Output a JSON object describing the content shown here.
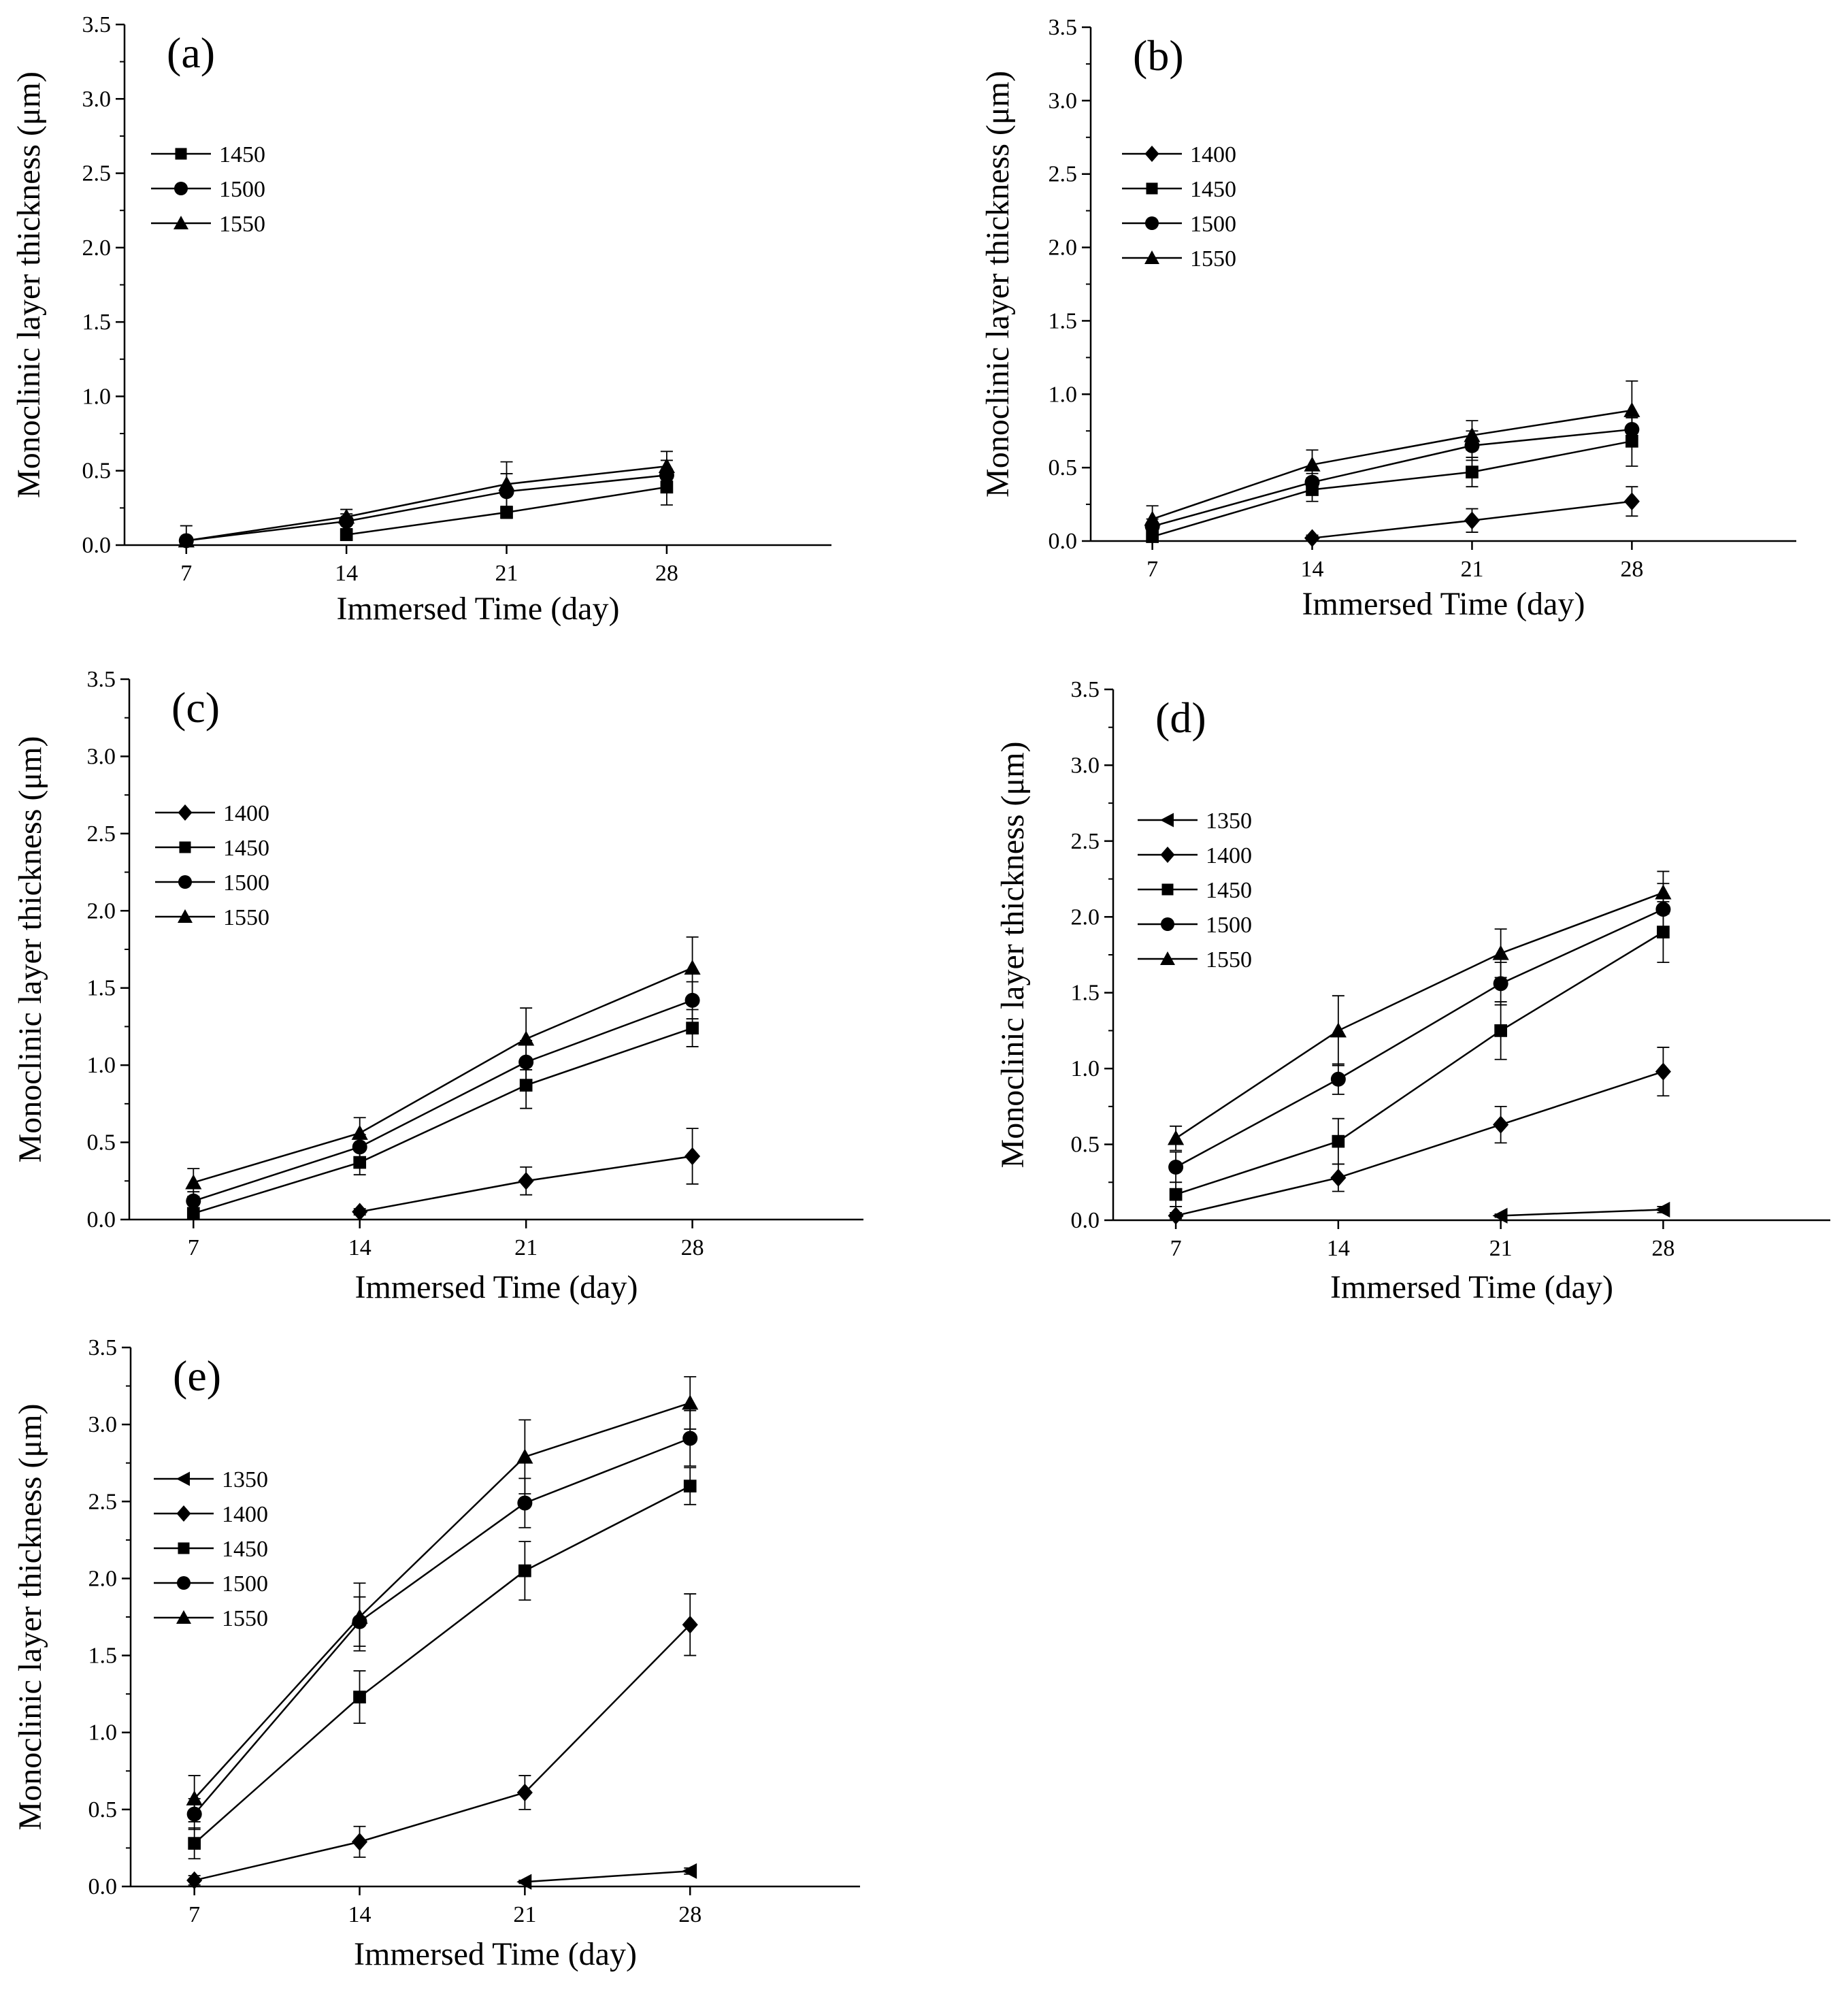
{
  "figure": {
    "xlabel": "Immersed Time (day)",
    "ylabel": "Monoclinic layer thickness (μm)"
  },
  "chart_data": [
    {
      "type": "line",
      "panel": "(a)",
      "xlabel": "Immersed Time (day)",
      "ylabel": "Monoclinic layer thickness (μm)",
      "x": [
        7,
        14,
        21,
        28
      ],
      "x_ticks": [
        "7",
        "14",
        "21",
        "28"
      ],
      "y_ticks": [
        "0.0",
        "0.5",
        "1.0",
        "1.5",
        "2.0",
        "2.5",
        "3.0",
        "3.5"
      ],
      "ylim": [
        0,
        3.5
      ],
      "series": [
        {
          "name": "1450",
          "marker": "square",
          "values": [
            null,
            0.07,
            0.22,
            0.39
          ],
          "errors": [
            null,
            0.03,
            0.04,
            0.12
          ]
        },
        {
          "name": "1500",
          "marker": "circle",
          "values": [
            0.03,
            0.16,
            0.36,
            0.47
          ],
          "errors": [
            0.02,
            0.05,
            0.12,
            0.1
          ]
        },
        {
          "name": "1550",
          "marker": "triangle-up",
          "values": [
            0.03,
            0.19,
            0.41,
            0.53
          ],
          "errors": [
            0.1,
            0.05,
            0.15,
            0.1
          ]
        }
      ]
    },
    {
      "type": "line",
      "panel": "(b)",
      "xlabel": "Immersed Time (day)",
      "ylabel": "Monoclinic layer thickness (μm)",
      "x": [
        7,
        14,
        21,
        28
      ],
      "x_ticks": [
        "7",
        "14",
        "21",
        "28"
      ],
      "y_ticks": [
        "0.0",
        "0.5",
        "1.0",
        "1.5",
        "2.0",
        "2.5",
        "3.0",
        "3.5"
      ],
      "ylim": [
        0,
        3.5
      ],
      "series": [
        {
          "name": "1400",
          "marker": "diamond",
          "values": [
            null,
            0.02,
            0.14,
            0.27
          ],
          "errors": [
            null,
            0.02,
            0.08,
            0.1
          ]
        },
        {
          "name": "1450",
          "marker": "square",
          "values": [
            0.03,
            0.35,
            0.47,
            0.68
          ],
          "errors": [
            0.05,
            0.08,
            0.1,
            0.17
          ]
        },
        {
          "name": "1500",
          "marker": "circle",
          "values": [
            0.1,
            0.4,
            0.65,
            0.76
          ],
          "errors": [
            0.05,
            0.06,
            0.1,
            0.08
          ]
        },
        {
          "name": "1550",
          "marker": "triangle-up",
          "values": [
            0.15,
            0.52,
            0.72,
            0.89
          ],
          "errors": [
            0.09,
            0.1,
            0.1,
            0.2
          ]
        }
      ]
    },
    {
      "type": "line",
      "panel": "(c)",
      "xlabel": "Immersed Time (day)",
      "ylabel": "Monoclinic layer thickness (μm)",
      "x": [
        7,
        14,
        21,
        28
      ],
      "x_ticks": [
        "7",
        "14",
        "21",
        "28"
      ],
      "y_ticks": [
        "0.0",
        "0.5",
        "1.0",
        "1.5",
        "2.0",
        "2.5",
        "3.0",
        "3.5"
      ],
      "ylim": [
        0,
        3.5
      ],
      "series": [
        {
          "name": "1400",
          "marker": "diamond",
          "values": [
            null,
            0.05,
            0.25,
            0.41
          ],
          "errors": [
            null,
            0.02,
            0.09,
            0.18
          ]
        },
        {
          "name": "1450",
          "marker": "square",
          "values": [
            0.04,
            0.37,
            0.87,
            1.24
          ],
          "errors": [
            0.03,
            0.08,
            0.15,
            0.12
          ]
        },
        {
          "name": "1500",
          "marker": "circle",
          "values": [
            0.12,
            0.47,
            1.02,
            1.42
          ],
          "errors": [
            0.06,
            0.08,
            0.14,
            0.12
          ]
        },
        {
          "name": "1550",
          "marker": "triangle-up",
          "values": [
            0.24,
            0.56,
            1.17,
            1.63
          ],
          "errors": [
            0.09,
            0.1,
            0.2,
            0.2
          ]
        }
      ]
    },
    {
      "type": "line",
      "panel": "(d)",
      "xlabel": "Immersed Time (day)",
      "ylabel": "Monoclinic layer thickness (μm)",
      "x": [
        7,
        14,
        21,
        28
      ],
      "x_ticks": [
        "7",
        "14",
        "21",
        "28"
      ],
      "y_ticks": [
        "0.0",
        "0.5",
        "1.0",
        "1.5",
        "2.0",
        "2.5",
        "3.0",
        "3.5"
      ],
      "ylim": [
        0,
        3.5
      ],
      "series": [
        {
          "name": "1350",
          "marker": "triangle-left",
          "values": [
            null,
            null,
            0.03,
            0.07
          ],
          "errors": [
            null,
            null,
            0.01,
            0.02
          ]
        },
        {
          "name": "1400",
          "marker": "diamond",
          "values": [
            0.03,
            0.28,
            0.63,
            0.98
          ],
          "errors": [
            0.02,
            0.09,
            0.12,
            0.16
          ]
        },
        {
          "name": "1450",
          "marker": "square",
          "values": [
            0.17,
            0.52,
            1.25,
            1.9
          ],
          "errors": [
            0.08,
            0.15,
            0.19,
            0.2
          ]
        },
        {
          "name": "1500",
          "marker": "circle",
          "values": [
            0.35,
            0.93,
            1.56,
            2.05
          ],
          "errors": [
            0.1,
            0.1,
            0.14,
            0.17
          ]
        },
        {
          "name": "1550",
          "marker": "triangle-up",
          "values": [
            0.54,
            1.25,
            1.76,
            2.16
          ],
          "errors": [
            0.08,
            0.23,
            0.16,
            0.14
          ]
        }
      ]
    },
    {
      "type": "line",
      "panel": "(e)",
      "xlabel": "Immersed Time (day)",
      "ylabel": "Monoclinic layer thickness (μm)",
      "x": [
        7,
        14,
        21,
        28
      ],
      "x_ticks": [
        "7",
        "14",
        "21",
        "28"
      ],
      "y_ticks": [
        "0.0",
        "0.5",
        "1.0",
        "1.5",
        "2.0",
        "2.5",
        "3.0",
        "3.5"
      ],
      "ylim": [
        0,
        3.5
      ],
      "series": [
        {
          "name": "1350",
          "marker": "triangle-left",
          "values": [
            null,
            null,
            0.03,
            0.1
          ],
          "errors": [
            null,
            null,
            0.01,
            0.02
          ]
        },
        {
          "name": "1400",
          "marker": "diamond",
          "values": [
            0.04,
            0.29,
            0.61,
            1.7
          ],
          "errors": [
            0.03,
            0.1,
            0.11,
            0.2
          ]
        },
        {
          "name": "1450",
          "marker": "square",
          "values": [
            0.28,
            1.23,
            2.05,
            2.6
          ],
          "errors": [
            0.1,
            0.17,
            0.19,
            0.12
          ]
        },
        {
          "name": "1500",
          "marker": "circle",
          "values": [
            0.47,
            1.72,
            2.49,
            2.91
          ],
          "errors": [
            0.1,
            0.16,
            0.16,
            0.18
          ]
        },
        {
          "name": "1550",
          "marker": "triangle-up",
          "values": [
            0.57,
            1.75,
            2.79,
            3.14
          ],
          "errors": [
            0.15,
            0.22,
            0.24,
            0.17
          ]
        }
      ]
    }
  ]
}
